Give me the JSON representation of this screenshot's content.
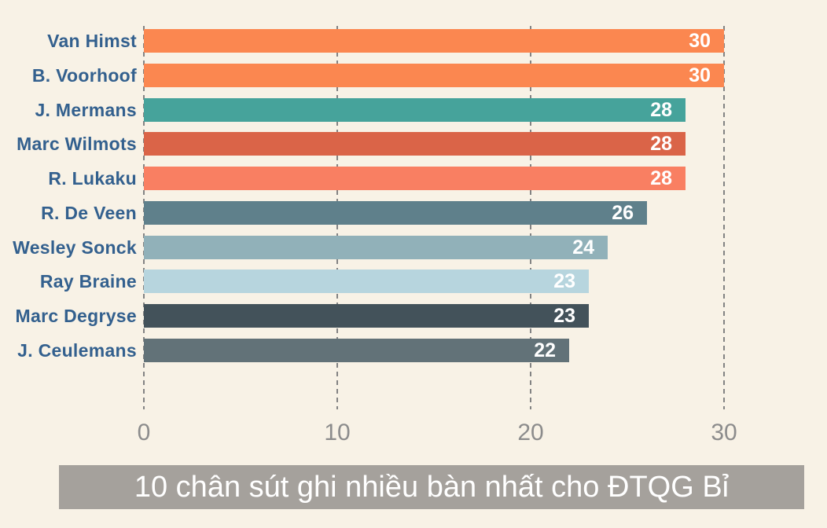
{
  "page": {
    "background_color": "#f8f2e6"
  },
  "chart_data": {
    "type": "bar",
    "orientation": "horizontal",
    "title": "10 chân sút ghi nhiều bàn nhất cho ĐTQG Bỉ",
    "categories": [
      "Van Himst",
      "B. Voorhoof",
      "J. Mermans",
      "Marc Wilmots",
      "R. Lukaku",
      "R. De Veen",
      "Wesley Sonck",
      "Ray Braine",
      "Marc Degryse",
      "J. Ceulemans"
    ],
    "values": [
      30,
      30,
      28,
      28,
      28,
      26,
      24,
      23,
      23,
      22
    ],
    "bar_colors": [
      "#fb8750",
      "#fb8750",
      "#46a39b",
      "#da6448",
      "#f97f62",
      "#5f808b",
      "#91b1b9",
      "#b7d5de",
      "#43525a",
      "#627278"
    ],
    "value_labels": [
      "30",
      "30",
      "28",
      "28",
      "28",
      "26",
      "24",
      "23",
      "23",
      "22"
    ],
    "xlabel": "",
    "ylabel": "",
    "xlim": [
      0,
      30
    ],
    "x_ticks": [
      0,
      10,
      20,
      30
    ],
    "x_tick_labels": [
      "0",
      "10",
      "20",
      "30"
    ],
    "grid": "vertical-dashed",
    "legend": "none",
    "styles": {
      "category_label_color": "#33608e",
      "value_label_color": "#ffffff",
      "tick_label_color": "#8c8c8c",
      "gridline_color": "#838383",
      "caption_bg_color": "#a5a19c",
      "caption_text_color": "#ffffff"
    }
  }
}
